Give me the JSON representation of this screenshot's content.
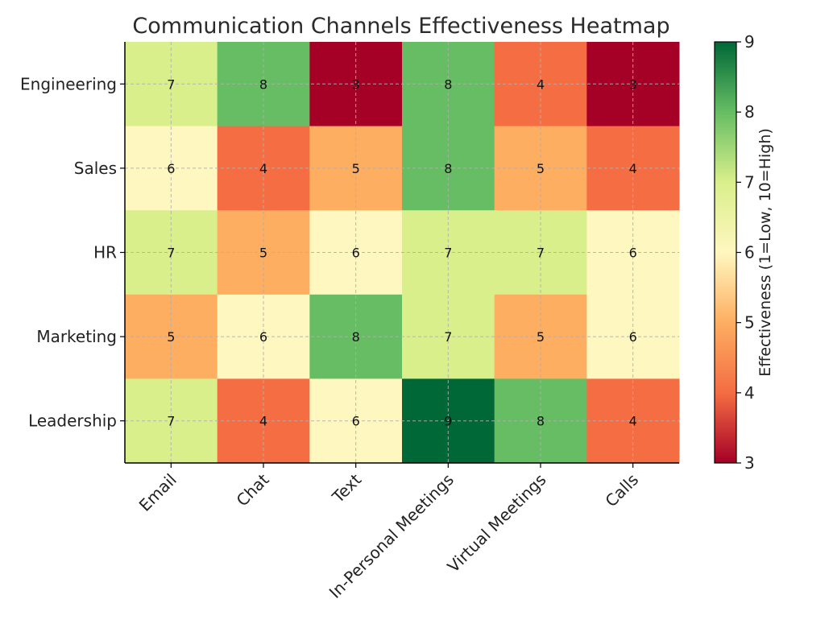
{
  "chart_data": {
    "type": "heatmap",
    "title": "Communication Channels Effectiveness Heatmap",
    "x_categories": [
      "Email",
      "Chat",
      "Text",
      "In-Personal Meetings",
      "Virtual Meetings",
      "Calls"
    ],
    "y_categories": [
      "Engineering",
      "Sales",
      "HR",
      "Marketing",
      "Leadership"
    ],
    "values": [
      [
        7,
        8,
        3,
        8,
        4,
        3
      ],
      [
        6,
        4,
        5,
        8,
        5,
        4
      ],
      [
        7,
        5,
        6,
        7,
        7,
        6
      ],
      [
        5,
        6,
        8,
        7,
        5,
        6
      ],
      [
        7,
        4,
        6,
        9,
        8,
        4
      ]
    ],
    "colorbar": {
      "label": "Effectiveness (1=Low, 10=High)",
      "range": [
        3,
        9
      ],
      "ticks": [
        3,
        4,
        5,
        6,
        7,
        8,
        9
      ]
    },
    "color_scale": {
      "name": "RdYlGn",
      "stops": {
        "3": "#a50026",
        "4": "#f46d43",
        "5": "#fdae61",
        "6": "#fff7c0",
        "7": "#d9ef8b",
        "8": "#66bd63",
        "9": "#006837"
      }
    },
    "grid": true
  }
}
